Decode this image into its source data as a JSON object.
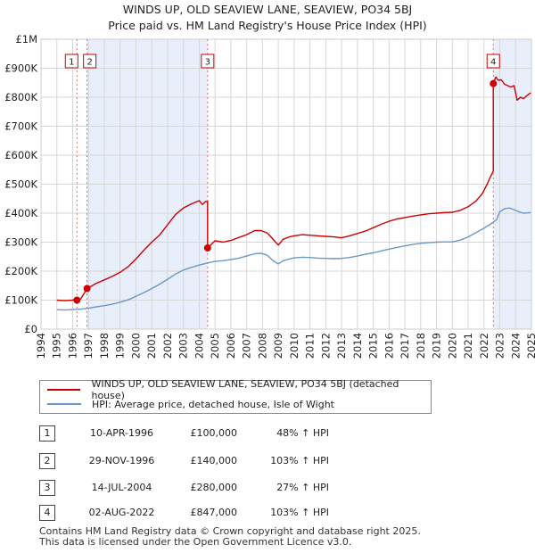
{
  "chart_data": {
    "type": "line",
    "title": "WINDS UP, OLD SEAVIEW LANE, SEAVIEW, PO34 5BJ",
    "subtitle": "Price paid vs. HM Land Registry's House Price Index (HPI)",
    "xlabel": "",
    "ylabel": "",
    "xlim": [
      1994,
      2025
    ],
    "ylim": [
      0,
      1000000
    ],
    "x_ticks": [
      "1994",
      "1995",
      "1996",
      "1997",
      "1998",
      "1999",
      "2000",
      "2001",
      "2002",
      "2003",
      "2004",
      "2005",
      "2006",
      "2007",
      "2008",
      "2009",
      "2010",
      "2011",
      "2012",
      "2013",
      "2014",
      "2015",
      "2016",
      "2017",
      "2018",
      "2019",
      "2020",
      "2021",
      "2022",
      "2023",
      "2024",
      "2025"
    ],
    "y_ticks": [
      {
        "value": 0,
        "label": "£0"
      },
      {
        "value": 100000,
        "label": "£100K"
      },
      {
        "value": 200000,
        "label": "£200K"
      },
      {
        "value": 300000,
        "label": "£300K"
      },
      {
        "value": 400000,
        "label": "£400K"
      },
      {
        "value": 500000,
        "label": "£500K"
      },
      {
        "value": 600000,
        "label": "£600K"
      },
      {
        "value": 700000,
        "label": "£700K"
      },
      {
        "value": 800000,
        "label": "£800K"
      },
      {
        "value": 900000,
        "label": "£900K"
      },
      {
        "value": 1000000,
        "label": "£1M"
      }
    ],
    "series": [
      {
        "name": "WINDS UP, OLD SEAVIEW LANE, SEAVIEW, PO34 5BJ (detached house)",
        "color": "#cc0000",
        "x": [
          1995.0,
          1995.5,
          1996.0,
          1996.27,
          1996.27,
          1996.5,
          1996.91,
          1996.91,
          1997.5,
          1998.0,
          1998.5,
          1999.0,
          1999.5,
          2000.0,
          2000.5,
          2001.0,
          2001.5,
          2002.0,
          2002.5,
          2003.0,
          2003.5,
          2004.0,
          2004.2,
          2004.4,
          2004.53,
          2004.53,
          2005.0,
          2005.5,
          2006.0,
          2006.5,
          2007.0,
          2007.5,
          2007.9,
          2008.3,
          2008.7,
          2009.0,
          2009.3,
          2009.7,
          2010.0,
          2010.5,
          2011.0,
          2011.5,
          2012.0,
          2012.5,
          2013.0,
          2013.5,
          2014.0,
          2014.5,
          2015.0,
          2015.5,
          2016.0,
          2016.5,
          2017.0,
          2017.5,
          2018.0,
          2018.5,
          2019.0,
          2019.5,
          2020.0,
          2020.5,
          2021.0,
          2021.5,
          2021.9,
          2022.2,
          2022.4,
          2022.59,
          2022.59,
          2022.75,
          2022.9,
          2023.1,
          2023.3,
          2023.5,
          2023.7,
          2023.9,
          2024.1,
          2024.3,
          2024.5,
          2024.7,
          2024.95
        ],
        "values": [
          100000,
          98000,
          100000,
          101000,
          100000,
          104000,
          140000,
          140000,
          158000,
          170000,
          182000,
          196000,
          215000,
          242000,
          272000,
          300000,
          325000,
          360000,
          395000,
          418000,
          432000,
          443000,
          430000,
          440000,
          441000,
          280000,
          305000,
          300000,
          306000,
          316000,
          326000,
          340000,
          340000,
          332000,
          308000,
          290000,
          310000,
          318000,
          322000,
          326000,
          324000,
          322000,
          320000,
          318000,
          315000,
          322000,
          330000,
          338000,
          350000,
          362000,
          372000,
          380000,
          385000,
          390000,
          394000,
          398000,
          400000,
          402000,
          403000,
          410000,
          422000,
          442000,
          468000,
          500000,
          525000,
          545000,
          847000,
          870000,
          858000,
          860000,
          845000,
          840000,
          835000,
          840000,
          790000,
          800000,
          795000,
          805000,
          815000
        ]
      },
      {
        "name": "HPI: Average price, detached house, Isle of Wight",
        "color": "#6b98c7",
        "x": [
          1995.0,
          1995.5,
          1996.0,
          1996.5,
          1997.0,
          1997.5,
          1998.0,
          1998.5,
          1999.0,
          1999.5,
          2000.0,
          2000.5,
          2001.0,
          2001.5,
          2002.0,
          2002.5,
          2003.0,
          2003.5,
          2004.0,
          2004.5,
          2005.0,
          2005.5,
          2006.0,
          2006.5,
          2007.0,
          2007.5,
          2007.9,
          2008.3,
          2008.7,
          2009.0,
          2009.3,
          2009.7,
          2010.0,
          2010.5,
          2011.0,
          2011.5,
          2012.0,
          2012.5,
          2013.0,
          2013.5,
          2014.0,
          2014.5,
          2015.0,
          2015.5,
          2016.0,
          2016.5,
          2017.0,
          2017.5,
          2018.0,
          2018.5,
          2019.0,
          2019.5,
          2020.0,
          2020.5,
          2021.0,
          2021.5,
          2022.0,
          2022.4,
          2022.8,
          2023.0,
          2023.3,
          2023.6,
          2023.9,
          2024.2,
          2024.5,
          2024.95
        ],
        "values": [
          67000,
          66000,
          67500,
          69000,
          72000,
          77000,
          81000,
          86000,
          93000,
          101000,
          113000,
          126000,
          140000,
          155000,
          172000,
          190000,
          204000,
          213000,
          221000,
          228000,
          234000,
          236000,
          240000,
          245000,
          252000,
          260000,
          262000,
          255000,
          235000,
          225000,
          236000,
          242000,
          246000,
          248000,
          247000,
          245000,
          244000,
          243000,
          244000,
          247000,
          252000,
          258000,
          263000,
          270000,
          276000,
          282000,
          287000,
          292000,
          296000,
          298000,
          300000,
          301000,
          301000,
          307000,
          318000,
          333000,
          348000,
          362000,
          378000,
          405000,
          415000,
          418000,
          412000,
          405000,
          400000,
          402000
        ]
      }
    ],
    "sales": [
      {
        "label": "1",
        "year": 1996.27,
        "price": 100000
      },
      {
        "label": "2",
        "year": 1996.91,
        "price": 140000
      },
      {
        "label": "3",
        "year": 2004.53,
        "price": 280000
      },
      {
        "label": "4",
        "year": 2022.59,
        "price": 847000
      }
    ],
    "shaded_ranges": [
      [
        1996.91,
        2004.53
      ],
      [
        2022.59,
        2025.0
      ]
    ],
    "colors": {
      "grid": "#d6d6d6",
      "shade": "#e9eefb",
      "marker_line": "#e07070",
      "plot_bg": "#ffffff"
    }
  },
  "legend": [
    {
      "label": "WINDS UP, OLD SEAVIEW LANE, SEAVIEW, PO34 5BJ (detached house)",
      "color": "#cc0000"
    },
    {
      "label": "HPI: Average price, detached house, Isle of Wight",
      "color": "#6b98c7"
    }
  ],
  "sales_table": [
    {
      "num": "1",
      "date": "10-APR-1996",
      "price": "£100,000",
      "pct": "48% ↑ HPI"
    },
    {
      "num": "2",
      "date": "29-NOV-1996",
      "price": "£140,000",
      "pct": "103% ↑ HPI"
    },
    {
      "num": "3",
      "date": "14-JUL-2004",
      "price": "£280,000",
      "pct": "27% ↑ HPI"
    },
    {
      "num": "4",
      "date": "02-AUG-2022",
      "price": "£847,000",
      "pct": "103% ↑ HPI"
    }
  ],
  "footer": {
    "line1": "Contains HM Land Registry data © Crown copyright and database right 2025.",
    "line2": "This data is licensed under the Open Government Licence v3.0."
  }
}
